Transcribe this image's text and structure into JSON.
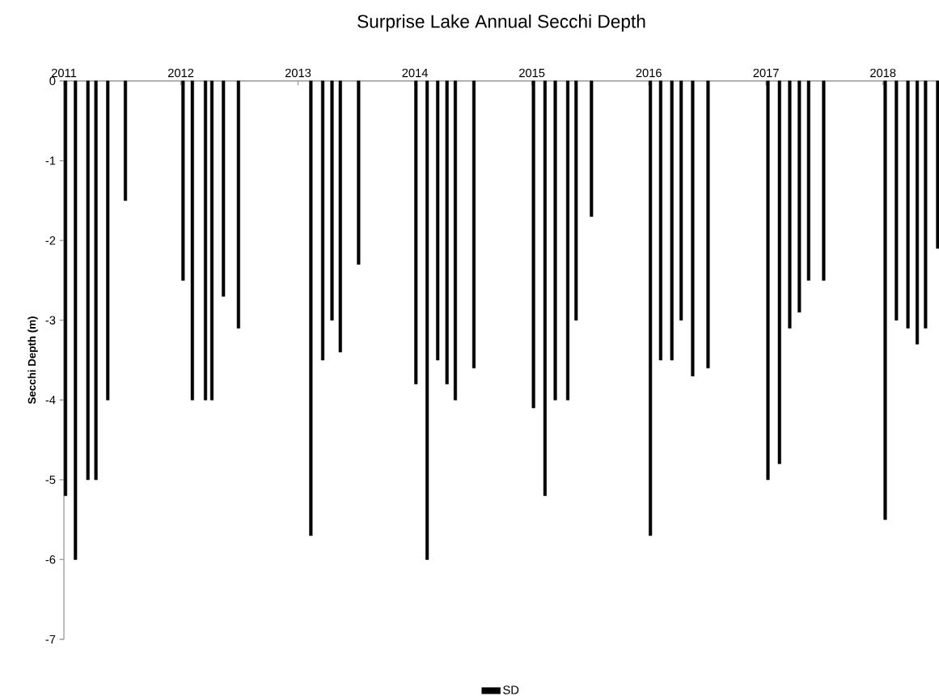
{
  "chart_data": {
    "type": "bar",
    "title": "Surprise Lake Annual Secchi Depth",
    "ylabel": "Secchi Depth (m)",
    "x": [
      "2011-01-06",
      "2011-02-06",
      "2011-03-17",
      "2011-04-11",
      "2011-05-18",
      "2011-07-12",
      "2012-01-08",
      "2012-02-06",
      "2012-03-18",
      "2012-04-07",
      "2012-05-13",
      "2012-06-29",
      "2013-02-10",
      "2013-03-19",
      "2013-04-17",
      "2013-05-13",
      "2013-07-09",
      "2014-01-04",
      "2014-02-08",
      "2014-03-13",
      "2014-04-11",
      "2014-05-07",
      "2014-07-04",
      "2015-01-06",
      "2015-02-11",
      "2015-03-15",
      "2015-04-23",
      "2015-05-19",
      "2015-07-06",
      "2016-01-06",
      "2016-02-07",
      "2016-03-13",
      "2016-04-11",
      "2016-05-17",
      "2016-07-04",
      "2017-01-07",
      "2017-02-12",
      "2017-03-16",
      "2017-04-15",
      "2017-05-14",
      "2017-06-30",
      "2018-01-08",
      "2018-02-12",
      "2018-03-20",
      "2018-04-18",
      "2018-05-14",
      "2018-06-21"
    ],
    "series": [
      {
        "name": "SD",
        "color": "#000000",
        "values": [
          -5.2,
          -6,
          -5,
          -5,
          -4,
          -1.5,
          -2.5,
          -4,
          -4,
          -4,
          -2.7,
          -3.1,
          -5.7,
          -3.5,
          -3,
          -3.4,
          -2.3,
          -3.8,
          -6,
          -3.5,
          -3.8,
          -4,
          -3.6,
          -4.1,
          -5.2,
          -4,
          -4,
          -3,
          -1.7,
          -5.7,
          -3.5,
          -3.5,
          -3,
          -3.7,
          -3.6,
          -5,
          -4.8,
          -3.1,
          -2.9,
          -2.5,
          -2.5,
          -5.5,
          -3,
          -3.1,
          -3.3,
          -3.1,
          -2.1
        ]
      }
    ],
    "xlim": [
      "2011-01-01",
      "2018-06-25"
    ],
    "xticks": [
      "2011",
      "2012",
      "2013",
      "2014",
      "2015",
      "2016",
      "2017",
      "2018"
    ],
    "ylim": [
      -7,
      0
    ],
    "yticks": [
      -7,
      -6,
      -5,
      -4,
      -3,
      -2,
      -1,
      0
    ],
    "legend": "bottom"
  }
}
